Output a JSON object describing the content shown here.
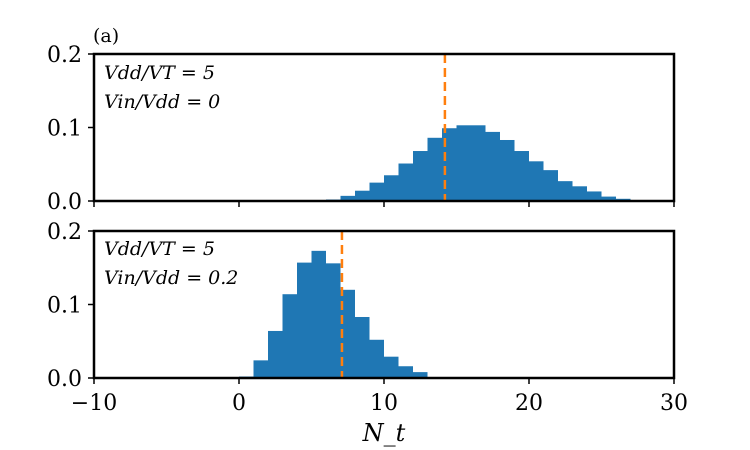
{
  "chart_data": {
    "type": "bar",
    "panel_label": "(a)",
    "xlabel": "N_t",
    "xlim": [
      -10,
      30
    ],
    "x_ticks": [
      "−10",
      "0",
      "10",
      "20",
      "30"
    ],
    "x_tick_values": [
      -10,
      0,
      10,
      20,
      30
    ],
    "bin_width": 1,
    "colors": {
      "bars": "#1f77b4",
      "mean_line": "#ff7f0e"
    },
    "panels": [
      {
        "name": "top",
        "annotation_line1": "Vdd/VT = 5",
        "annotation_line2": "Vin/Vdd = 0",
        "ylim": [
          0,
          0.2
        ],
        "y_ticks": [
          "0.0",
          "0.1",
          "0.2"
        ],
        "y_tick_values": [
          0,
          0.1,
          0.2
        ],
        "mean": 14.2,
        "bins": [
          {
            "x": 6,
            "value": 0.002
          },
          {
            "x": 7,
            "value": 0.007
          },
          {
            "x": 8,
            "value": 0.014
          },
          {
            "x": 9,
            "value": 0.025
          },
          {
            "x": 10,
            "value": 0.035
          },
          {
            "x": 11,
            "value": 0.051
          },
          {
            "x": 12,
            "value": 0.068
          },
          {
            "x": 13,
            "value": 0.086
          },
          {
            "x": 14,
            "value": 0.099
          },
          {
            "x": 15,
            "value": 0.103
          },
          {
            "x": 16,
            "value": 0.103
          },
          {
            "x": 17,
            "value": 0.094
          },
          {
            "x": 18,
            "value": 0.083
          },
          {
            "x": 19,
            "value": 0.068
          },
          {
            "x": 20,
            "value": 0.054
          },
          {
            "x": 21,
            "value": 0.042
          },
          {
            "x": 22,
            "value": 0.027
          },
          {
            "x": 23,
            "value": 0.02
          },
          {
            "x": 24,
            "value": 0.013
          },
          {
            "x": 25,
            "value": 0.006
          },
          {
            "x": 26,
            "value": 0.003
          },
          {
            "x": 27,
            "value": 0.001
          }
        ]
      },
      {
        "name": "bottom",
        "annotation_line1": "Vdd/VT = 5",
        "annotation_line2": "Vin/Vdd = 0.2",
        "ylim": [
          0,
          0.2
        ],
        "y_ticks": [
          "0.0",
          "0.1",
          "0.2"
        ],
        "y_tick_values": [
          0,
          0.1,
          0.2
        ],
        "mean": 7.1,
        "bins": [
          {
            "x": 0,
            "value": 0.002
          },
          {
            "x": 1,
            "value": 0.024
          },
          {
            "x": 2,
            "value": 0.064
          },
          {
            "x": 3,
            "value": 0.114
          },
          {
            "x": 4,
            "value": 0.157
          },
          {
            "x": 5,
            "value": 0.173
          },
          {
            "x": 6,
            "value": 0.156
          },
          {
            "x": 7,
            "value": 0.12
          },
          {
            "x": 8,
            "value": 0.083
          },
          {
            "x": 9,
            "value": 0.052
          },
          {
            "x": 10,
            "value": 0.029
          },
          {
            "x": 11,
            "value": 0.016
          },
          {
            "x": 12,
            "value": 0.008
          }
        ]
      }
    ]
  }
}
